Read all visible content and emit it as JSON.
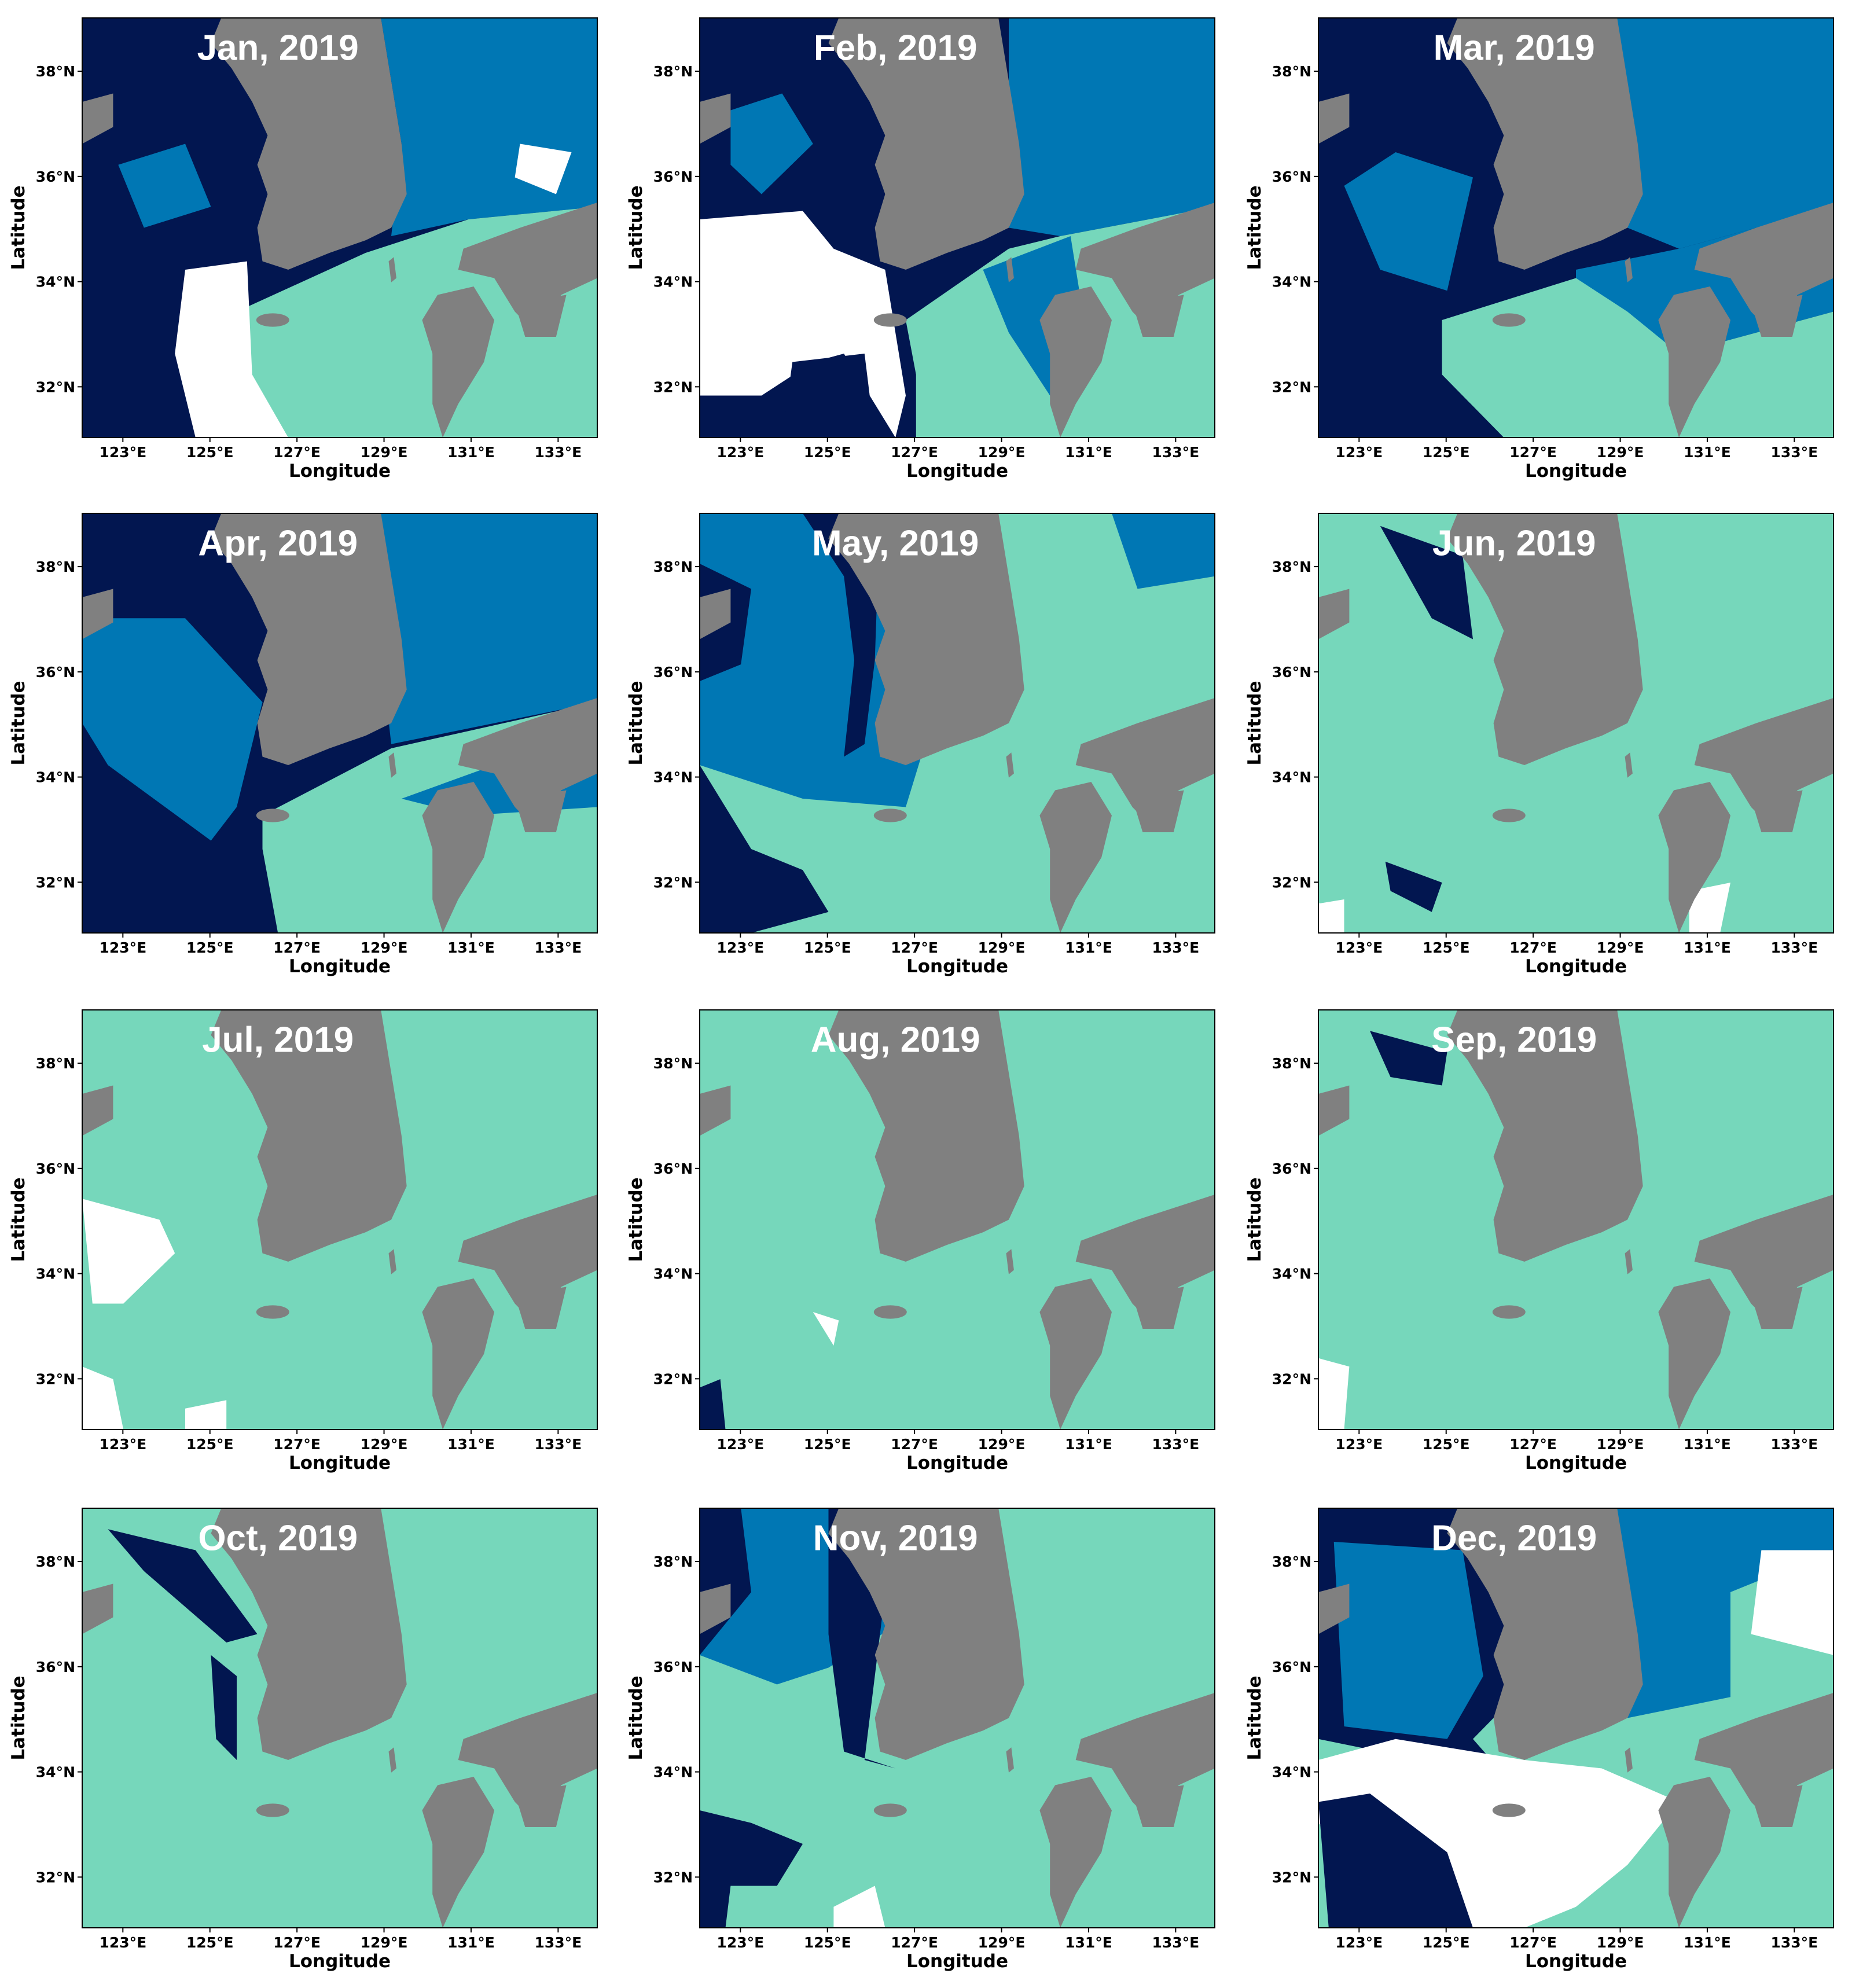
{
  "panels": [
    {
      "title": "Jan, 2019"
    },
    {
      "title": "Feb, 2019"
    },
    {
      "title": "Mar, 2019"
    },
    {
      "title": "Apr, 2019"
    },
    {
      "title": "May, 2019"
    },
    {
      "title": "Jun, 2019"
    },
    {
      "title": "Jul, 2019"
    },
    {
      "title": "Aug, 2019"
    },
    {
      "title": "Sep, 2019"
    },
    {
      "title": "Oct, 2019"
    },
    {
      "title": "Nov, 2019"
    },
    {
      "title": "Dec, 2019"
    }
  ],
  "axes": {
    "x_label": "Longitude",
    "y_label": "Latitude",
    "x_tick_labels": [
      "123°E",
      "125°E",
      "127°E",
      "129°E",
      "131°E",
      "133°E"
    ],
    "y_tick_labels": [
      "38°N",
      "36°N",
      "34°N",
      "32°N"
    ]
  }
}
